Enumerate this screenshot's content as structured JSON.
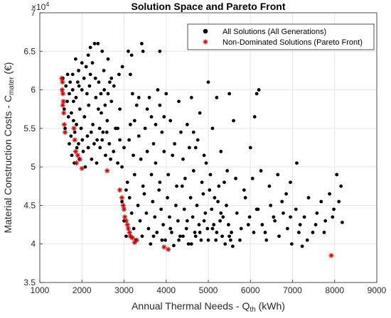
{
  "chart_data": {
    "type": "scatter",
    "title": "Solution Space and Pareto Front",
    "xlabel_main": "Annual Thermal Needs - Q",
    "xlabel_sub": "th",
    "xlabel_unit": " (kWh)",
    "ylabel_main": "Material Construction Costs - C",
    "ylabel_sub": "mater",
    "ylabel_unit": " (€)",
    "y_exponent_label": "×10",
    "y_exponent": "4",
    "xlim": [
      1000,
      9000
    ],
    "ylim": [
      3.5,
      7
    ],
    "x_ticks": [
      "1000",
      "2000",
      "3000",
      "4000",
      "5000",
      "6000",
      "7000",
      "8000",
      "9000"
    ],
    "y_ticks": [
      "3.5",
      "4",
      "4.5",
      "5",
      "5.5",
      "6",
      "6.5",
      "7"
    ],
    "x_tick_values": [
      1000,
      2000,
      3000,
      4000,
      5000,
      6000,
      7000,
      8000,
      9000
    ],
    "y_tick_values": [
      3.5,
      4,
      4.5,
      5,
      5.5,
      6,
      6.5,
      7
    ],
    "grid": true,
    "legend_position": "top-right",
    "series": [
      {
        "name": "All Solutions (All Generations)",
        "marker": "dot",
        "color": "#000000",
        "points": [
          [
            1550,
            6.15
          ],
          [
            1620,
            6.05
          ],
          [
            1650,
            5.85
          ],
          [
            1700,
            5.95
          ],
          [
            1750,
            5.7
          ],
          [
            1780,
            6.2
          ],
          [
            1800,
            5.6
          ],
          [
            1830,
            5.45
          ],
          [
            1860,
            5.9
          ],
          [
            1900,
            6.1
          ],
          [
            1920,
            5.3
          ],
          [
            1950,
            5.75
          ],
          [
            1980,
            5.5
          ],
          [
            2000,
            6.0
          ],
          [
            2030,
            5.2
          ],
          [
            2060,
            5.65
          ],
          [
            2100,
            6.3
          ],
          [
            2130,
            5.4
          ],
          [
            2160,
            5.8
          ],
          [
            2200,
            6.2
          ],
          [
            2230,
            5.1
          ],
          [
            2260,
            5.55
          ],
          [
            2300,
            6.6
          ],
          [
            2330,
            5.9
          ],
          [
            2360,
            5.35
          ],
          [
            2400,
            6.1
          ],
          [
            2430,
            5.25
          ],
          [
            2460,
            5.7
          ],
          [
            2500,
            5.45
          ],
          [
            2530,
            6.0
          ],
          [
            2560,
            5.15
          ],
          [
            2600,
            5.6
          ],
          [
            2650,
            5.3
          ],
          [
            2700,
            5.85
          ],
          [
            2750,
            5.2
          ],
          [
            2800,
            5.5
          ],
          [
            2850,
            5.05
          ],
          [
            2900,
            5.35
          ],
          [
            2950,
            5.0
          ],
          [
            3000,
            5.25
          ],
          [
            1700,
            5.3
          ],
          [
            1760,
            5.15
          ],
          [
            1820,
            5.05
          ],
          [
            1880,
            5.25
          ],
          [
            1940,
            5.1
          ],
          [
            2010,
            5.35
          ],
          [
            2080,
            5.0
          ],
          [
            2150,
            5.25
          ],
          [
            2220,
            5.45
          ],
          [
            2290,
            5.3
          ],
          [
            2350,
            5.05
          ],
          [
            2420,
            5.5
          ],
          [
            2480,
            5.35
          ],
          [
            2550,
            5.8
          ],
          [
            2620,
            5.95
          ],
          [
            2680,
            5.1
          ],
          [
            1600,
            5.5
          ],
          [
            1680,
            5.65
          ],
          [
            1740,
            5.4
          ],
          [
            1800,
            5.85
          ],
          [
            1870,
            5.55
          ],
          [
            1930,
            6.05
          ],
          [
            2050,
            6.15
          ],
          [
            2120,
            5.95
          ],
          [
            2180,
            6.05
          ],
          [
            2250,
            6.35
          ],
          [
            2320,
            6.15
          ],
          [
            2390,
            5.75
          ],
          [
            2450,
            5.95
          ],
          [
            2520,
            6.25
          ],
          [
            2590,
            5.45
          ],
          [
            2660,
            6.1
          ],
          [
            3100,
            6.5
          ],
          [
            3150,
            6.2
          ],
          [
            3200,
            5.95
          ],
          [
            3250,
            5.6
          ],
          [
            3300,
            5.8
          ],
          [
            3350,
            5.4
          ],
          [
            3400,
            5.1
          ],
          [
            3450,
            6.5
          ],
          [
            3500,
            5.5
          ],
          [
            3550,
            5.2
          ],
          [
            3600,
            5.9
          ],
          [
            3650,
            5.65
          ],
          [
            3700,
            5.3
          ],
          [
            3750,
            5.05
          ],
          [
            3800,
            6.0
          ],
          [
            3850,
            5.8
          ],
          [
            3900,
            5.45
          ],
          [
            3950,
            5.2
          ],
          [
            4000,
            5.95
          ],
          [
            4100,
            5.6
          ],
          [
            4200,
            5.3
          ],
          [
            4300,
            5.85
          ],
          [
            4400,
            5.1
          ],
          [
            4500,
            5.55
          ],
          [
            4600,
            5.9
          ],
          [
            4700,
            5.25
          ],
          [
            4800,
            5.7
          ],
          [
            4900,
            5.15
          ],
          [
            5000,
            6.1
          ],
          [
            5100,
            5.5
          ],
          [
            5200,
            5.9
          ],
          [
            5300,
            5.2
          ],
          [
            5500,
            5.95
          ],
          [
            5600,
            5.6
          ],
          [
            6000,
            5.25
          ],
          [
            6100,
            5.65
          ],
          [
            6200,
            6.0
          ],
          [
            6150,
            5.95
          ],
          [
            3120,
            5.35
          ],
          [
            3220,
            5.15
          ],
          [
            3080,
            4.8
          ],
          [
            3130,
            4.6
          ],
          [
            3180,
            4.4
          ],
          [
            3230,
            4.2
          ],
          [
            3280,
            4.05
          ],
          [
            3330,
            4.5
          ],
          [
            3380,
            4.3
          ],
          [
            3430,
            4.1
          ],
          [
            3480,
            4.65
          ],
          [
            3530,
            4.4
          ],
          [
            3580,
            4.2
          ],
          [
            3630,
            4.0
          ],
          [
            3680,
            4.55
          ],
          [
            3730,
            4.35
          ],
          [
            3780,
            4.15
          ],
          [
            3830,
            4.7
          ],
          [
            3880,
            4.45
          ],
          [
            3930,
            4.25
          ],
          [
            3980,
            4.05
          ],
          [
            4030,
            4.6
          ],
          [
            4080,
            4.35
          ],
          [
            4130,
            4.15
          ],
          [
            4180,
            3.98
          ],
          [
            4230,
            4.5
          ],
          [
            4280,
            4.3
          ],
          [
            4330,
            4.1
          ],
          [
            4380,
            4.75
          ],
          [
            4430,
            4.45
          ],
          [
            4480,
            4.2
          ],
          [
            4530,
            4.0
          ],
          [
            4580,
            4.6
          ],
          [
            4630,
            4.35
          ],
          [
            4680,
            4.15
          ],
          [
            4730,
            4.5
          ],
          [
            4780,
            4.25
          ],
          [
            4830,
            4.05
          ],
          [
            4880,
            4.65
          ],
          [
            4930,
            4.4
          ],
          [
            4980,
            4.2
          ],
          [
            5030,
            4.7
          ],
          [
            5080,
            4.45
          ],
          [
            5130,
            4.25
          ],
          [
            5180,
            4.05
          ],
          [
            5230,
            4.55
          ],
          [
            5280,
            4.3
          ],
          [
            5330,
            4.1
          ],
          [
            5380,
            4.8
          ],
          [
            5430,
            4.5
          ],
          [
            5480,
            4.25
          ],
          [
            5530,
            4.05
          ],
          [
            5580,
            3.97
          ],
          [
            5680,
            4.4
          ],
          [
            5780,
            4.2
          ],
          [
            5880,
            4.6
          ],
          [
            5980,
            4.35
          ],
          [
            6080,
            4.15
          ],
          [
            6180,
            4.45
          ],
          [
            6280,
            4.25
          ],
          [
            6380,
            4.05
          ],
          [
            6480,
            4.5
          ],
          [
            6580,
            4.3
          ],
          [
            6680,
            4.1
          ],
          [
            6780,
            4.4
          ],
          [
            6880,
            4.2
          ],
          [
            6980,
            4.0
          ],
          [
            7080,
            4.45
          ],
          [
            7180,
            4.25
          ],
          [
            7230,
            3.97
          ],
          [
            7280,
            4.35
          ],
          [
            7380,
            4.6
          ],
          [
            7480,
            4.15
          ],
          [
            7580,
            4.4
          ],
          [
            7680,
            4.55
          ],
          [
            7780,
            4.3
          ],
          [
            7880,
            4.65
          ],
          [
            7980,
            4.45
          ],
          [
            8050,
            4.9
          ],
          [
            8150,
            4.75
          ],
          [
            8180,
            4.28
          ],
          [
            7100,
            5.05
          ],
          [
            6950,
            4.8
          ],
          [
            6850,
            4.65
          ],
          [
            6650,
            4.9
          ],
          [
            6450,
            4.75
          ],
          [
            6250,
            4.95
          ],
          [
            6050,
            4.85
          ],
          [
            5850,
            4.7
          ],
          [
            5650,
            4.85
          ],
          [
            5450,
            4.95
          ],
          [
            5250,
            4.75
          ],
          [
            5050,
            4.9
          ],
          [
            4850,
            4.8
          ],
          [
            4650,
            4.95
          ],
          [
            4450,
            4.85
          ],
          [
            4250,
            4.75
          ],
          [
            4050,
            4.9
          ],
          [
            3850,
            4.8
          ],
          [
            3650,
            4.9
          ],
          [
            3450,
            4.75
          ],
          [
            3250,
            4.9
          ],
          [
            3050,
            4.7
          ],
          [
            2950,
            4.55
          ],
          [
            3000,
            4.3
          ],
          [
            3050,
            4.1
          ],
          [
            2850,
            5.5
          ],
          [
            2900,
            5.75
          ],
          [
            2760,
            6.05
          ],
          [
            2700,
            6.15
          ],
          [
            2620,
            6.4
          ],
          [
            2480,
            6.5
          ],
          [
            2380,
            6.6
          ],
          [
            2200,
            6.55
          ],
          [
            2150,
            6.45
          ],
          [
            2000,
            6.35
          ],
          [
            1920,
            6.25
          ],
          [
            1850,
            6.4
          ],
          [
            1780,
            6.0
          ],
          [
            1720,
            6.1
          ],
          [
            1660,
            6.2
          ],
          [
            1580,
            5.75
          ],
          [
            3850,
            6.5
          ],
          [
            3420,
            6.6
          ],
          [
            3180,
            6.45
          ],
          [
            2960,
            6.3
          ],
          [
            2880,
            6.2
          ],
          [
            4650,
            5.45
          ],
          [
            4750,
            5.35
          ],
          [
            4950,
            5.05
          ],
          [
            4550,
            5.25
          ],
          [
            4350,
            5.45
          ],
          [
            4150,
            5.15
          ],
          [
            3950,
            5.65
          ],
          [
            3750,
            5.55
          ],
          [
            3550,
            5.75
          ],
          [
            3350,
            5.9
          ],
          [
            3150,
            5.55
          ],
          [
            5150,
            4.6
          ],
          [
            5350,
            4.35
          ],
          [
            5550,
            4.15
          ],
          [
            5750,
            4.05
          ],
          [
            5950,
            4.25
          ],
          [
            6150,
            4.45
          ],
          [
            6350,
            4.15
          ],
          [
            6550,
            4.35
          ],
          [
            6750,
            4.55
          ],
          [
            6950,
            4.35
          ],
          [
            7150,
            4.15
          ],
          [
            7350,
            4.05
          ],
          [
            7550,
            4.25
          ],
          [
            7750,
            4.15
          ],
          [
            7950,
            4.35
          ],
          [
            8100,
            4.55
          ],
          [
            4400,
            4.1
          ],
          [
            4600,
            4.0
          ],
          [
            4800,
            4.15
          ],
          [
            5000,
            4.05
          ],
          [
            5200,
            4.15
          ],
          [
            5400,
            4.0
          ],
          [
            3700,
            4.1
          ],
          [
            3900,
            4.05
          ],
          [
            4100,
            4.2
          ],
          [
            4300,
            4.05
          ],
          [
            4500,
            4.3
          ],
          [
            4700,
            4.1
          ],
          [
            4900,
            4.3
          ],
          [
            5100,
            4.2
          ],
          [
            5300,
            4.4
          ],
          [
            5500,
            4.1
          ]
        ]
      },
      {
        "name": "Non-Dominated Solutions (Pareto Front)",
        "marker": "asterisk",
        "color": "#cc0000",
        "points": [
          [
            1520,
            6.15
          ],
          [
            1540,
            6.1
          ],
          [
            1530,
            6.0
          ],
          [
            1550,
            5.95
          ],
          [
            1560,
            5.85
          ],
          [
            1545,
            5.8
          ],
          [
            1570,
            5.7
          ],
          [
            1580,
            5.55
          ],
          [
            1600,
            5.45
          ],
          [
            1810,
            5.5
          ],
          [
            1830,
            5.35
          ],
          [
            1850,
            5.2
          ],
          [
            1870,
            5.05
          ],
          [
            1900,
            5.15
          ],
          [
            1950,
            5.1
          ],
          [
            2000,
            4.98
          ],
          [
            2600,
            4.95
          ],
          [
            2900,
            4.7
          ],
          [
            2950,
            4.6
          ],
          [
            2980,
            4.5
          ],
          [
            3000,
            4.45
          ],
          [
            3020,
            4.35
          ],
          [
            3050,
            4.3
          ],
          [
            3080,
            4.25
          ],
          [
            3100,
            4.2
          ],
          [
            3130,
            4.15
          ],
          [
            3150,
            4.1
          ],
          [
            3200,
            4.08
          ],
          [
            3250,
            4.02
          ],
          [
            3300,
            4.05
          ],
          [
            3950,
            3.96
          ],
          [
            4050,
            3.93
          ],
          [
            7920,
            3.85
          ]
        ]
      }
    ]
  }
}
